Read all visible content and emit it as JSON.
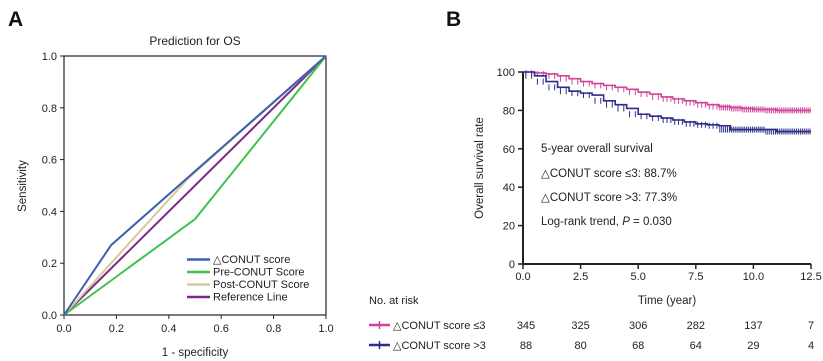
{
  "chart_data": [
    {
      "panel_label": "A",
      "type": "line",
      "title": "Prediction for OS",
      "xlabel": "1 - specificity",
      "ylabel": "Sensitivity",
      "xlim": [
        0,
        1
      ],
      "ylim": [
        0,
        1
      ],
      "xticks": [
        "0.0",
        "0.2",
        "0.4",
        "0.6",
        "0.8",
        "1.0"
      ],
      "yticks": [
        "0.0",
        "0.2",
        "0.4",
        "0.6",
        "0.8",
        "1.0"
      ],
      "grid": false,
      "legend": "bottom-right",
      "series": [
        {
          "name": "△CONUT score",
          "color": "#3f5fae",
          "x": [
            0,
            0.18,
            1
          ],
          "y": [
            0,
            0.27,
            1
          ]
        },
        {
          "name": "Pre-CONUT Score",
          "color": "#3ec24c",
          "x": [
            0,
            0.5,
            1
          ],
          "y": [
            0,
            0.37,
            1
          ]
        },
        {
          "name": "Post-CONUT Score",
          "color": "#d6c99a",
          "x": [
            0,
            1
          ],
          "y": [
            0,
            1
          ]
        },
        {
          "name": "Reference Line",
          "color": "#7a2a86",
          "x": [
            0,
            1
          ],
          "y": [
            0,
            1
          ]
        }
      ]
    },
    {
      "panel_label": "B",
      "type": "line",
      "xlabel": "Time (year)",
      "ylabel": "Overall survival rate",
      "xlim": [
        0,
        12.5
      ],
      "ylim": [
        0,
        100
      ],
      "xticks": [
        "0.0",
        "2.5",
        "5.0",
        "7.5",
        "10.0",
        "12.5"
      ],
      "yticks": [
        "0",
        "20",
        "40",
        "60",
        "80",
        "100"
      ],
      "grid": false,
      "annotations": [
        "5-year overall survival",
        "△CONUT score ≤3: 88.7%",
        "△CONUT score >3: 77.3%"
      ],
      "logrank": {
        "prefix": "Log-rank trend, ",
        "p_symbol": "P",
        "suffix": " = 0.030"
      },
      "series": [
        {
          "name": "△CONUT score ≤3",
          "color": "#d0449a",
          "x": [
            0,
            0.5,
            1.0,
            1.5,
            2.0,
            2.5,
            3.0,
            3.5,
            4.0,
            4.5,
            5.0,
            5.5,
            6.0,
            6.5,
            7.0,
            7.5,
            8.0,
            8.5,
            9.0,
            9.5,
            10.0,
            10.5,
            11.0,
            11.5,
            12.0,
            12.5
          ],
          "y": [
            100,
            99.5,
            99,
            98,
            96.5,
            95,
            94,
            93,
            92,
            91,
            89.5,
            88.5,
            87,
            86,
            85,
            84,
            83,
            82,
            81.5,
            81,
            80.5,
            80.5,
            80,
            80,
            80,
            80
          ]
        },
        {
          "name": "△CONUT score >3",
          "color": "#2e2d87",
          "x": [
            0,
            0.5,
            1.0,
            1.5,
            2.0,
            2.5,
            3.0,
            3.5,
            4.0,
            4.5,
            5.0,
            5.5,
            6.0,
            6.5,
            7.0,
            7.5,
            8.0,
            8.5,
            9.0,
            9.5,
            10.0,
            10.5,
            11.0,
            11.5,
            12.0,
            12.5
          ],
          "y": [
            100,
            98,
            95,
            92,
            90,
            89,
            88,
            85,
            83,
            81,
            78,
            77,
            76,
            75,
            74,
            73,
            72.5,
            72,
            70,
            70,
            70,
            70,
            69,
            69,
            69,
            69
          ]
        }
      ],
      "risk_table": {
        "title": "No. at risk",
        "times": [
          0,
          2.5,
          5.0,
          7.5,
          10.0,
          12.5
        ],
        "rows": [
          {
            "label": "△CONUT score ≤3",
            "color": "#d0449a",
            "values": [
              "345",
              "325",
              "306",
              "282",
              "137",
              "7"
            ]
          },
          {
            "label": "△CONUT score >3",
            "color": "#2e2d87",
            "values": [
              "88",
              "80",
              "68",
              "64",
              "29",
              "4"
            ]
          }
        ]
      }
    }
  ]
}
